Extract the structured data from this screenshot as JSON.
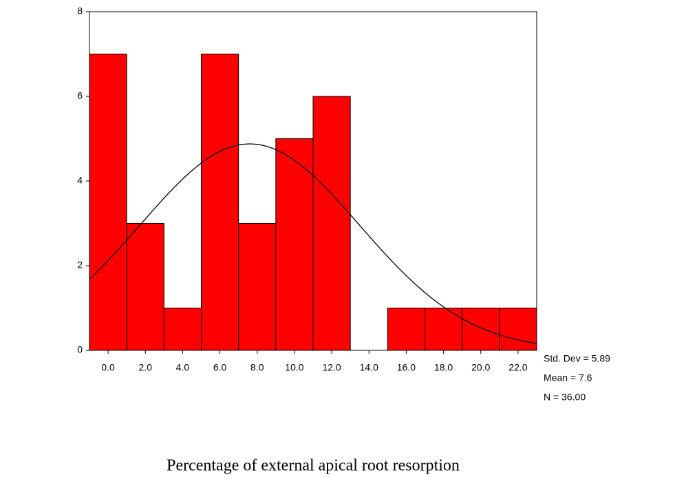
{
  "chart_data": {
    "type": "histogram",
    "x_label": "Percentage of external apical root resorption",
    "bins": [
      -1,
      1,
      3,
      5,
      7,
      9,
      11,
      13,
      15,
      17,
      19,
      21,
      23
    ],
    "values": [
      7,
      3,
      1,
      7,
      3,
      5,
      6,
      0,
      1,
      1,
      1,
      1
    ],
    "color": "#ff0000",
    "xlim": [
      -1,
      23
    ],
    "xticks": [
      {
        "value": 0,
        "label": "0.0"
      },
      {
        "value": 2,
        "label": "2.0"
      },
      {
        "value": 4,
        "label": "4.0"
      },
      {
        "value": 6,
        "label": "6.0"
      },
      {
        "value": 8,
        "label": "8.0"
      },
      {
        "value": 10,
        "label": "10.0"
      },
      {
        "value": 12,
        "label": "12.0"
      },
      {
        "value": 14,
        "label": "14.0"
      },
      {
        "value": 16,
        "label": "16.0"
      },
      {
        "value": 18,
        "label": "18.0"
      },
      {
        "value": 20,
        "label": "20.0"
      },
      {
        "value": 22,
        "label": "22.0"
      }
    ],
    "ylim": [
      0,
      8
    ],
    "yticks": [
      0,
      2,
      4,
      6,
      8
    ],
    "stats": [
      {
        "label": "Std. Dev = 5.89",
        "value": 5.89
      },
      {
        "label": "Mean = 7.6",
        "value": 7.6
      },
      {
        "label": "N = 36.00",
        "value": 36
      }
    ],
    "normal_curve": true
  }
}
